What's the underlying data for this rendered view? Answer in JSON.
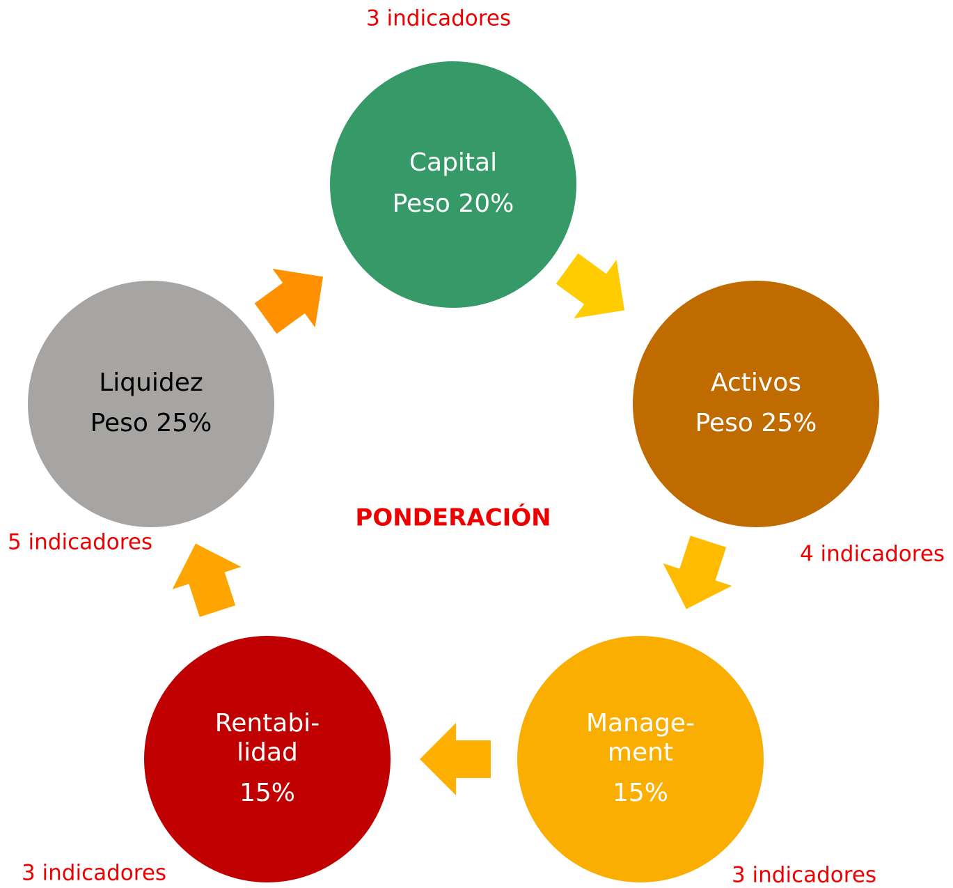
{
  "title": "PONDERACIÓN",
  "nodes": [
    {
      "lines": [
        "Capital",
        "Peso 20%"
      ],
      "indicators": "3 indicadores"
    },
    {
      "lines": [
        "Activos",
        "Peso 25%"
      ],
      "indicators": "4 indicadores"
    },
    {
      "lines": [
        "Manage-",
        "ment",
        "15%"
      ],
      "indicators": "3 indicadores"
    },
    {
      "lines": [
        "Rentabi-",
        "lidad",
        "15%"
      ],
      "indicators": "3 indicadores"
    },
    {
      "lines": [
        "Liquidez",
        "Peso 25%"
      ],
      "indicators": "5 indicadores"
    }
  ]
}
